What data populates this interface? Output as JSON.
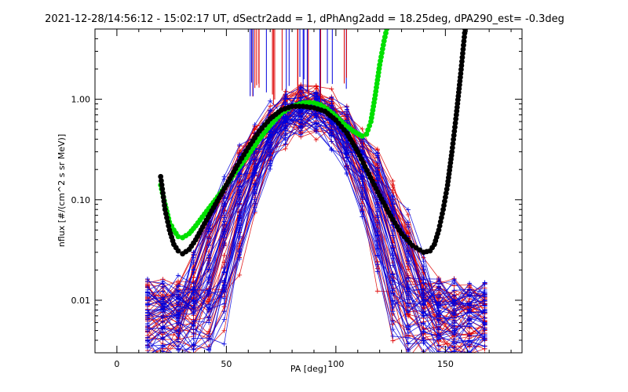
{
  "chart_data": {
    "type": "line",
    "title": "2021-12-28/14:56:12 - 15:02:17 UT, dSectr2add = 1, dPhAng2add = 18.25deg, dPA290_est=  -0.3deg",
    "xlabel": "PA [deg]",
    "ylabel": "nflux [#/(cm^2 s sr MeV)]",
    "xlim": [
      -10,
      185
    ],
    "ylim": [
      0.003,
      5
    ],
    "yscale": "log",
    "x_ticks": [
      0,
      50,
      100,
      150
    ],
    "x_tick_labels": [
      "0",
      "50",
      "100",
      "150"
    ],
    "y_ticks": [
      0.01,
      0.1,
      1.0
    ],
    "y_tick_labels": [
      "0.01",
      "0.10",
      "1.00"
    ],
    "grid": false,
    "series": [
      {
        "color": "#00e000",
        "style": "dots",
        "x": [
          20,
          22,
          24,
          26,
          28,
          30,
          33,
          36,
          40,
          45,
          50,
          55,
          60,
          65,
          70,
          75,
          80,
          85,
          88,
          90,
          93,
          96,
          100,
          104,
          108,
          112,
          114,
          116,
          118,
          120,
          122,
          124
        ],
        "y": [
          0.14,
          0.09,
          0.06,
          0.05,
          0.043,
          0.042,
          0.046,
          0.055,
          0.072,
          0.1,
          0.14,
          0.2,
          0.28,
          0.4,
          0.55,
          0.72,
          0.85,
          0.92,
          0.93,
          0.92,
          0.88,
          0.8,
          0.68,
          0.56,
          0.48,
          0.43,
          0.45,
          0.6,
          1.1,
          2.2,
          3.8,
          6
        ]
      },
      {
        "color": "#000000",
        "style": "dots",
        "x": [
          20,
          22,
          24,
          26,
          28,
          30,
          33,
          36,
          40,
          45,
          50,
          55,
          60,
          65,
          70,
          75,
          80,
          85,
          90,
          95,
          100,
          105,
          110,
          115,
          120,
          125,
          130,
          135,
          140,
          143,
          145,
          147,
          149,
          151,
          153,
          155,
          157,
          159
        ],
        "y": [
          0.17,
          0.08,
          0.05,
          0.036,
          0.031,
          0.029,
          0.032,
          0.04,
          0.058,
          0.09,
          0.14,
          0.22,
          0.33,
          0.48,
          0.64,
          0.78,
          0.85,
          0.85,
          0.82,
          0.76,
          0.62,
          0.46,
          0.3,
          0.18,
          0.11,
          0.069,
          0.046,
          0.035,
          0.03,
          0.031,
          0.036,
          0.05,
          0.08,
          0.14,
          0.3,
          0.7,
          1.8,
          5
        ]
      }
    ]
  }
}
